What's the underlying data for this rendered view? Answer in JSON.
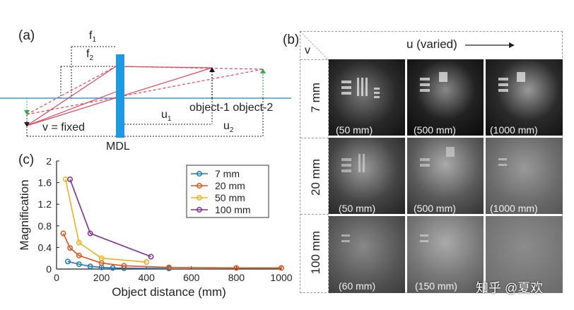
{
  "panel_a": {
    "label": "(a)",
    "f1": "f",
    "f1_sub": "1",
    "f2": "f",
    "f2_sub": "2",
    "v_fixed": "v = fixed",
    "mdl": "MDL",
    "u1": "u",
    "u1_sub": "1",
    "u2": "u",
    "u2_sub": "2",
    "object_labels": "object-1 object-2",
    "colors": {
      "lens": "#1e9be0",
      "ray": "#e0445a",
      "axis": "#3c9bd8",
      "object2": "#2fae4e"
    }
  },
  "panel_b": {
    "label": "(b)",
    "corner_v": "v",
    "header": "u (varied)",
    "rows": [
      {
        "label": "7 mm",
        "cells": [
          "(50 mm)",
          "(500 mm)",
          "(1000 mm)"
        ],
        "tones": [
          "#1a1a1a",
          "#0f0f0f",
          "#161616"
        ]
      },
      {
        "label": "20 mm",
        "cells": [
          "(50 mm)",
          "(500 mm)",
          "(1000 mm)"
        ],
        "tones": [
          "#2a2a2a",
          "#4a4a4a",
          "#6a6a6a"
        ]
      },
      {
        "label": "100 mm",
        "cells": [
          "(60 mm)",
          "(150 mm)",
          ""
        ],
        "tones": [
          "#4c4c4c",
          "#6b6b6b",
          "#7a7a7a"
        ]
      }
    ],
    "watermark": "知乎 @夏欢"
  },
  "panel_c": {
    "label": "(c)",
    "chart_data": {
      "type": "line",
      "xlabel": "Object distance (mm)",
      "ylabel": "Magnification",
      "xlim": [
        0,
        1000
      ],
      "ylim": [
        0,
        2
      ],
      "xticks": [
        0,
        200,
        400,
        600,
        800,
        1000
      ],
      "yticks": [
        0,
        0.4,
        0.8,
        1.2,
        1.6,
        2
      ],
      "ytick_labels": [
        "0",
        "0.4",
        "0.8",
        "1.2",
        "1.6",
        "2"
      ],
      "legend_position": "top-right",
      "series": [
        {
          "name": "7 mm",
          "color": "#1f77b4",
          "x": [
            50,
            100,
            150,
            200,
            250,
            300,
            500
          ],
          "y": [
            0.14,
            0.09,
            0.05,
            0.03,
            0.02,
            0.015,
            0.01
          ]
        },
        {
          "name": "20 mm",
          "color": "#d95319",
          "x": [
            30,
            60,
            100,
            200,
            300,
            500,
            800,
            1000
          ],
          "y": [
            0.66,
            0.39,
            0.25,
            0.11,
            0.06,
            0.03,
            0.02,
            0.02
          ]
        },
        {
          "name": "50 mm",
          "color": "#edb120",
          "x": [
            40,
            100,
            200,
            400
          ],
          "y": [
            1.66,
            0.49,
            0.2,
            0.13
          ]
        },
        {
          "name": "100 mm",
          "color": "#7e2f8e",
          "x": [
            60,
            150,
            420
          ],
          "y": [
            1.66,
            0.66,
            0.23
          ]
        }
      ]
    }
  }
}
